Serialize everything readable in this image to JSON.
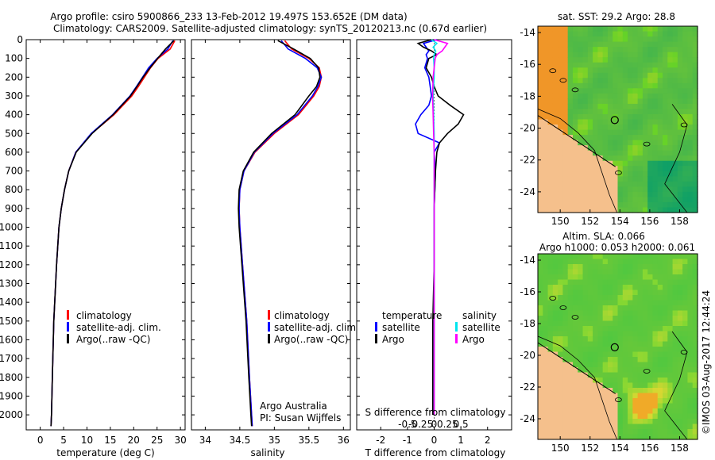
{
  "header": {
    "line1": "Argo profile: csiro 5900866_233 13-Feb-2012 19.497S 153.652E (DM data)",
    "line2": "Climatology: CARS2009. Satellite-adjusted climatology: synTS_20120213.nc (0.67d earlier)"
  },
  "colors": {
    "climatology": "#ff0000",
    "satellite": "#0000ff",
    "argo": "#000000",
    "sal_satellite": "#00e5ee",
    "sal_argo": "#ff00ff",
    "land": "#f5c08c"
  },
  "chart_data": [
    {
      "type": "line",
      "title": "",
      "xlabel": "temperature (deg C)",
      "ylabel": "",
      "xlim": [
        -3,
        31
      ],
      "ylim": [
        2080,
        0
      ],
      "xticks": [
        "0",
        "5",
        "10",
        "15",
        "20",
        "25",
        "30"
      ],
      "yticks": [
        "0",
        "100",
        "200",
        "300",
        "400",
        "500",
        "600",
        "700",
        "800",
        "900",
        "1000",
        "1100",
        "1200",
        "1300",
        "1400",
        "1500",
        "1600",
        "1700",
        "1800",
        "1900",
        "2000"
      ],
      "legend": [
        "climatology",
        "satellite-adj. clim.",
        "Argo(..raw -QC)"
      ],
      "series": [
        {
          "name": "climatology",
          "depth": [
            5,
            50,
            100,
            150,
            200,
            250,
            300,
            400,
            500,
            600,
            700,
            800,
            900,
            1000,
            1200,
            1500,
            1800,
            2000,
            2060
          ],
          "values": [
            28.8,
            27.8,
            25.2,
            23.6,
            22.3,
            21.0,
            19.6,
            15.8,
            11.0,
            7.6,
            6.1,
            5.2,
            4.5,
            4.0,
            3.5,
            2.9,
            2.6,
            2.4,
            2.3
          ]
        },
        {
          "name": "satellite-adj. clim.",
          "depth": [
            5,
            50,
            100,
            150,
            200,
            250,
            300,
            400,
            500,
            600,
            700,
            800,
            900,
            1000,
            1200,
            1500,
            1800,
            2000,
            2060
          ],
          "values": [
            28.4,
            27.3,
            25.0,
            23.2,
            21.9,
            20.6,
            19.2,
            15.5,
            10.9,
            7.6,
            6.1,
            5.2,
            4.5,
            4.0,
            3.5,
            2.9,
            2.6,
            2.4,
            2.3
          ]
        },
        {
          "name": "Argo(..raw -QC)",
          "depth": [
            5,
            50,
            100,
            150,
            200,
            250,
            300,
            400,
            500,
            600,
            700,
            800,
            900,
            1000,
            1200,
            1500,
            1800,
            2000,
            2060
          ],
          "values": [
            28.6,
            26.8,
            25.1,
            23.5,
            22.0,
            20.7,
            19.3,
            15.6,
            11.1,
            7.7,
            6.1,
            5.2,
            4.5,
            4.0,
            3.5,
            2.9,
            2.6,
            2.4,
            2.3
          ]
        }
      ]
    },
    {
      "type": "line",
      "xlabel": "salinity",
      "xlim": [
        33.8,
        36.1
      ],
      "ylim": [
        2080,
        0
      ],
      "xticks": [
        "34",
        "34.5",
        "35",
        "35.5",
        "36"
      ],
      "legend": [
        "climatology",
        "satellite-adj. clim.",
        "Argo(..raw -QC)"
      ],
      "annotation": [
        "Argo Australia",
        "PI: Susan Wijffels"
      ],
      "series": [
        {
          "name": "climatology",
          "depth": [
            5,
            50,
            100,
            150,
            200,
            250,
            300,
            400,
            500,
            600,
            700,
            800,
            900,
            1000,
            1200,
            1500,
            1800,
            2000,
            2060
          ],
          "values": [
            35.15,
            35.25,
            35.5,
            35.65,
            35.68,
            35.65,
            35.57,
            35.35,
            35.0,
            34.72,
            34.56,
            34.5,
            34.49,
            34.5,
            34.54,
            34.6,
            34.64,
            34.67,
            34.68
          ]
        },
        {
          "name": "satellite-adj. clim.",
          "depth": [
            5,
            50,
            100,
            150,
            200,
            250,
            300,
            400,
            500,
            600,
            700,
            800,
            900,
            1000,
            1200,
            1500,
            1800,
            2000,
            2060
          ],
          "values": [
            35.1,
            35.2,
            35.45,
            35.62,
            35.68,
            35.63,
            35.55,
            35.33,
            34.98,
            34.71,
            34.56,
            34.5,
            34.49,
            34.5,
            34.54,
            34.6,
            34.64,
            34.67,
            34.68
          ]
        },
        {
          "name": "Argo(..raw -QC)",
          "depth": [
            5,
            50,
            100,
            150,
            200,
            250,
            300,
            400,
            500,
            600,
            700,
            800,
            900,
            1000,
            1200,
            1500,
            1800,
            2000,
            2060
          ],
          "values": [
            35.05,
            35.28,
            35.52,
            35.64,
            35.66,
            35.61,
            35.5,
            35.3,
            34.96,
            34.7,
            34.55,
            34.49,
            34.48,
            34.49,
            34.53,
            34.59,
            34.63,
            34.66,
            34.67
          ]
        }
      ]
    },
    {
      "type": "line",
      "xlabel": "T difference from climatology",
      "xlabel_top": "S difference from climatology",
      "xlim": [
        -2.9,
        2.9
      ],
      "ylim": [
        2080,
        0
      ],
      "xticks": [
        "-2",
        "-1",
        "0",
        "1",
        "2"
      ],
      "xticks_top": [
        "-0.5",
        "-0.25",
        "0",
        "0.25",
        "0.5"
      ],
      "legend_temperature_title": "temperature",
      "legend_salinity_title": "salinity",
      "legend": [
        "satellite",
        "Argo",
        "satellite",
        "Argo"
      ],
      "series": [
        {
          "name": "temperature satellite",
          "depth": [
            0,
            20,
            40,
            60,
            80,
            100,
            150,
            200,
            250,
            300,
            350,
            400,
            450,
            500,
            550,
            600,
            700,
            900,
            1200,
            1500,
            2000
          ],
          "values": [
            0.1,
            -0.4,
            -0.3,
            -0.2,
            -0.3,
            -0.25,
            -0.35,
            -0.2,
            -0.15,
            -0.1,
            -0.2,
            -0.5,
            -0.7,
            -0.6,
            0.2,
            0.0,
            0.05,
            0.0,
            0.0,
            0.0,
            0.0
          ]
        },
        {
          "name": "temperature Argo",
          "depth": [
            0,
            20,
            40,
            60,
            80,
            100,
            150,
            200,
            250,
            300,
            350,
            400,
            450,
            500,
            550,
            600,
            700,
            900,
            1200,
            1500,
            2000
          ],
          "values": [
            -0.1,
            -0.6,
            -0.4,
            -0.1,
            0.1,
            -0.2,
            -0.3,
            -0.1,
            0.0,
            0.15,
            0.6,
            1.1,
            0.9,
            0.5,
            0.2,
            0.1,
            0.05,
            0.0,
            0.0,
            -0.05,
            -0.05
          ]
        },
        {
          "name": "salinity satellite",
          "depth": [
            0,
            20,
            40,
            60,
            80,
            100,
            150,
            200,
            300,
            400,
            500,
            600,
            700,
            900,
            1200,
            1500,
            2000
          ],
          "values": [
            -0.05,
            0.05,
            -0.02,
            0.03,
            0.0,
            -0.01,
            0.0,
            0.0,
            -0.02,
            -0.01,
            0.0,
            0.0,
            0.0,
            0.0,
            0.0,
            0.0,
            0.0
          ]
        },
        {
          "name": "salinity Argo",
          "depth": [
            0,
            20,
            40,
            60,
            80,
            100,
            150,
            200,
            300,
            400,
            500,
            600,
            700,
            900,
            1200,
            1500,
            2000
          ],
          "values": [
            0.0,
            0.25,
            0.2,
            0.15,
            0.05,
            0.02,
            0.0,
            -0.02,
            -0.03,
            -0.02,
            -0.01,
            0.0,
            0.0,
            0.0,
            0.0,
            0.0,
            0.0
          ]
        }
      ]
    },
    {
      "type": "heatmap",
      "title": "sat. SST: 29.2 Argo: 28.8",
      "xticks": [
        "150",
        "152",
        "154",
        "156",
        "158"
      ],
      "yticks": [
        "-14",
        "-16",
        "-18",
        "-20",
        "-22",
        "-24"
      ],
      "xlim": [
        148.5,
        159.2
      ],
      "ylim": [
        -25.3,
        -13.6
      ],
      "profile_location": {
        "lon": 153.652,
        "lat": -19.497
      }
    },
    {
      "type": "heatmap",
      "title": "Altim. SLA: 0.066",
      "subtitle": "Argo h1000: 0.053 h2000: 0.061",
      "xticks": [
        "150",
        "152",
        "154",
        "156",
        "158"
      ],
      "yticks": [
        "-14",
        "-16",
        "-18",
        "-20",
        "-22",
        "-24"
      ],
      "xlim": [
        148.5,
        159.2
      ],
      "ylim": [
        -25.3,
        -13.6
      ],
      "profile_location": {
        "lon": 153.652,
        "lat": -19.497
      }
    }
  ],
  "footer_stamp": "©IMOS 03-Aug-2017 12:44:24"
}
